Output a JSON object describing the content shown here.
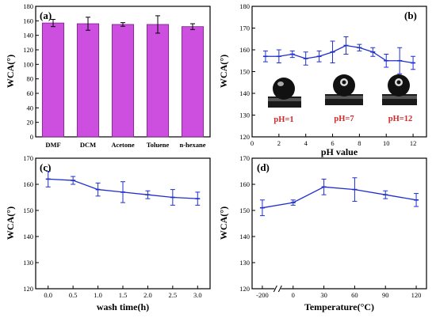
{
  "colors": {
    "bar_fill": "#cc4fe0",
    "bar_edge": "#7a1f8a",
    "line": "#1f2fcf",
    "ph_text": "#d62728",
    "axis": "#000000"
  },
  "chart_data": [
    {
      "type": "bar",
      "panel": "(a)",
      "ylabel": "WCA(°)",
      "xlabel": "",
      "categories": [
        "DMF",
        "DCM",
        "Acetone",
        "Toluene",
        "n-hexane"
      ],
      "values": [
        157,
        156,
        155,
        155,
        152
      ],
      "errors": [
        5,
        9,
        2.5,
        12,
        4
      ],
      "ylim": [
        0,
        180
      ],
      "yticks": [
        0,
        20,
        40,
        60,
        80,
        100,
        120,
        140,
        160,
        180
      ]
    },
    {
      "type": "line",
      "panel": "(b)",
      "ylabel": "WCA(°)",
      "xlabel": "pH value",
      "x": [
        1,
        2,
        3,
        4,
        5,
        6,
        7,
        8,
        9,
        10,
        11,
        12
      ],
      "y": [
        157,
        157,
        158,
        156,
        157,
        159,
        162,
        161,
        159,
        155,
        155,
        154
      ],
      "errors": [
        2.5,
        3,
        1.5,
        3,
        2.5,
        5,
        4,
        1.5,
        2,
        3,
        6,
        3
      ],
      "xlim": [
        0,
        13
      ],
      "ylim": [
        120,
        180
      ],
      "xticks": [
        0,
        2,
        4,
        6,
        8,
        10,
        12
      ],
      "yticks": [
        120,
        130,
        140,
        150,
        160,
        170,
        180
      ],
      "annotations": [
        "pH=1",
        "pH=7",
        "pH=12"
      ]
    },
    {
      "type": "line",
      "panel": "(c)",
      "ylabel": "WCA(°)",
      "xlabel": "wash time(h)",
      "x": [
        0,
        0.5,
        1,
        1.5,
        2,
        2.5,
        3
      ],
      "y": [
        162,
        161.5,
        158,
        157,
        156,
        155,
        154.5
      ],
      "errors": [
        3,
        1.5,
        2.5,
        4,
        1.5,
        3,
        2.5
      ],
      "xlim": [
        -0.25,
        3.25
      ],
      "ylim": [
        120,
        170
      ],
      "xticks": [
        "0.0",
        "0.5",
        "1.0",
        "1.5",
        "2.0",
        "2.5",
        "3.0"
      ],
      "yticks": [
        120,
        130,
        140,
        150,
        160,
        170
      ]
    },
    {
      "type": "line",
      "panel": "(d)",
      "ylabel": "WCA(°)",
      "xlabel": "Temperature(°C)",
      "x": [
        -200,
        0,
        30,
        60,
        90,
        120
      ],
      "y": [
        151,
        153,
        159,
        158,
        156,
        154
      ],
      "errors": [
        3,
        1,
        3,
        4.5,
        1.5,
        2.5
      ],
      "axis_break": true,
      "xticks": [
        "-200",
        "0",
        "30",
        "60",
        "90",
        "120"
      ],
      "ylim": [
        120,
        170
      ],
      "yticks": [
        120,
        130,
        140,
        150,
        160,
        170
      ]
    }
  ]
}
